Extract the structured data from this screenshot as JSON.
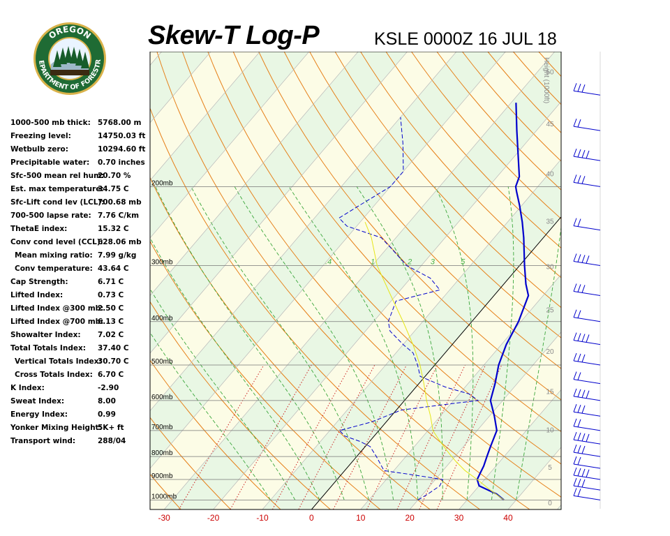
{
  "header": {
    "title": "Skew-T Log-P",
    "station": "KSLE 0000Z 16 JUL 18"
  },
  "logo": {
    "top_text": "OREGON",
    "bottom_text": "DEPARTMENT OF FORESTRY",
    "ring_color": "#1f6b34",
    "gold_color": "#d9b24a"
  },
  "indices": [
    {
      "label": "1000-500 mb thick:",
      "value": "5768.00 m"
    },
    {
      "label": "Freezing level:",
      "value": "14750.03 ft"
    },
    {
      "label": "Wetbulb zero:",
      "value": "10294.60 ft"
    },
    {
      "label": "Precipitable water:",
      "value": "0.70 inches"
    },
    {
      "label": "Sfc-500 mean rel hum:",
      "value": "20.70 %"
    },
    {
      "label": "Est. max temperature:",
      "value": "34.75 C"
    },
    {
      "label": "Sfc-Lift cond lev (LCL):",
      "value": "700.68 mb"
    },
    {
      "label": "700-500 lapse rate:",
      "value": "7.76 C/km"
    },
    {
      "label": "ThetaE index:",
      "value": "15.32 C"
    },
    {
      "label": "Conv cond level (CCL):",
      "value": "628.06 mb"
    },
    {
      "label": "Mean mixing ratio:",
      "value": "7.99 g/kg",
      "indent": true
    },
    {
      "label": "Conv temperature:",
      "value": "43.64 C",
      "indent": true
    },
    {
      "label": "Cap Strength:",
      "value": "6.71 C"
    },
    {
      "label": "Lifted Index:",
      "value": "0.73 C"
    },
    {
      "label": "Lifted Index @300 mb:",
      "value": "2.50 C"
    },
    {
      "label": "Lifted Index @700 mb:",
      "value": "6.13 C"
    },
    {
      "label": "Showalter Index:",
      "value": "7.02 C"
    },
    {
      "label": "Total Totals Index:",
      "value": "37.40 C"
    },
    {
      "label": "Vertical Totals Index:",
      "value": "30.70 C",
      "indent": true
    },
    {
      "label": "Cross Totals Index:",
      "value": "6.70 C",
      "indent": true
    },
    {
      "label": "K Index:",
      "value": "-2.90"
    },
    {
      "label": "Sweat Index:",
      "value": "8.00"
    },
    {
      "label": "Energy Index:",
      "value": "0.99"
    },
    {
      "label": "Yonker Mixing Height:",
      "value": "5K+ ft"
    },
    {
      "label": "Transport wind:",
      "value": "288/04"
    }
  ],
  "chart_data": {
    "type": "line",
    "title": "Skew-T Log-P",
    "xlabel": "",
    "ylabel": "",
    "x_ticks": [
      -30,
      -20,
      -10,
      0,
      10,
      20,
      30,
      40
    ],
    "x_tick_color": "#cc0000",
    "pressure_levels": [
      {
        "p": 200,
        "label": "200mb"
      },
      {
        "p": 300,
        "label": "300mb"
      },
      {
        "p": 400,
        "label": "400mb"
      },
      {
        "p": 500,
        "label": "500mb"
      },
      {
        "p": 600,
        "label": "600mb"
      },
      {
        "p": 700,
        "label": "700mb"
      },
      {
        "p": 800,
        "label": "800mb"
      },
      {
        "p": 900,
        "label": "900mb"
      },
      {
        "p": 1000,
        "label": "1000mb"
      }
    ],
    "height_axis_label": "Height (1000ft)",
    "height_ticks": [
      {
        "ft": 0,
        "label": "0"
      },
      {
        "ft": 5,
        "label": "5"
      },
      {
        "ft": 10,
        "label": "10"
      },
      {
        "ft": 15,
        "label": "15"
      },
      {
        "ft": 20,
        "label": "20"
      },
      {
        "ft": 25,
        "label": "25"
      },
      {
        "ft": 30,
        "label": "30"
      },
      {
        "ft": 35,
        "label": "35"
      },
      {
        "ft": 40,
        "label": "40"
      },
      {
        "ft": 45,
        "label": "45"
      },
      {
        "ft": 50,
        "label": "50"
      }
    ],
    "mixing_ratio_labels": [
      ".4",
      "1",
      "2",
      "3",
      "5"
    ],
    "series": [
      {
        "kind": "temperature",
        "color": "#0000cc",
        "points": [
          [
            1000,
            37.5
          ],
          [
            970,
            35.0
          ],
          [
            930,
            30.0
          ],
          [
            900,
            28.5
          ],
          [
            870,
            28.0
          ],
          [
            840,
            27.5
          ],
          [
            800,
            26.5
          ],
          [
            760,
            25.5
          ],
          [
            700,
            24.0
          ],
          [
            650,
            21.0
          ],
          [
            600,
            17.5
          ],
          [
            550,
            15.5
          ],
          [
            500,
            13.0
          ],
          [
            450,
            11.0
          ],
          [
            400,
            9.5
          ],
          [
            350,
            7.0
          ],
          [
            330,
            4.5
          ],
          [
            300,
            1.0
          ],
          [
            260,
            -4.0
          ],
          [
            240,
            -7.0
          ],
          [
            220,
            -10.5
          ],
          [
            205,
            -13.5
          ],
          [
            200,
            -14.5
          ],
          [
            190,
            -15.5
          ],
          [
            170,
            -19.5
          ],
          [
            150,
            -24.0
          ],
          [
            130,
            -29.0
          ]
        ]
      },
      {
        "kind": "dewpoint",
        "color": "#0000cc",
        "points": [
          [
            1000,
            20.0
          ],
          [
            970,
            21.0
          ],
          [
            930,
            22.0
          ],
          [
            900,
            21.5
          ],
          [
            880,
            15.0
          ],
          [
            860,
            8.0
          ],
          [
            800,
            4.0
          ],
          [
            760,
            1.0
          ],
          [
            740,
            -2.0
          ],
          [
            720,
            -6.0
          ],
          [
            700,
            -8.0
          ],
          [
            670,
            -3.0
          ],
          [
            630,
            1.0
          ],
          [
            610,
            10.0
          ],
          [
            600,
            15.0
          ],
          [
            580,
            12.0
          ],
          [
            560,
            6.0
          ],
          [
            530,
            -1.0
          ],
          [
            500,
            -3.5
          ],
          [
            470,
            -6.5
          ],
          [
            450,
            -10.0
          ],
          [
            420,
            -15.0
          ],
          [
            400,
            -17.0
          ],
          [
            360,
            -19.0
          ],
          [
            340,
            -12.0
          ],
          [
            320,
            -16.0
          ],
          [
            300,
            -23.0
          ],
          [
            275,
            -29.0
          ],
          [
            260,
            -33.0
          ],
          [
            245,
            -42.0
          ],
          [
            235,
            -45.0
          ],
          [
            220,
            -43.0
          ],
          [
            200,
            -40.0
          ],
          [
            185,
            -40.0
          ],
          [
            160,
            -45.0
          ],
          [
            140,
            -50.0
          ]
        ]
      },
      {
        "kind": "parcel",
        "color": "#e6e619",
        "points": [
          [
            1000,
            37.5
          ],
          [
            950,
            33.0
          ],
          [
            900,
            28.5
          ],
          [
            860,
            24.5
          ],
          [
            820,
            21.0
          ],
          [
            790,
            18.5
          ],
          [
            760,
            16.0
          ],
          [
            730,
            13.5
          ],
          [
            700,
            11.0
          ],
          [
            650,
            8.0
          ],
          [
            600,
            4.5
          ],
          [
            550,
            1.0
          ],
          [
            500,
            -3.0
          ],
          [
            450,
            -8.0
          ],
          [
            400,
            -14.0
          ],
          [
            350,
            -21.0
          ],
          [
            300,
            -29.0
          ],
          [
            260,
            -35.0
          ],
          [
            240,
            -39.0
          ]
        ]
      }
    ],
    "wind_levels_mb": [
      1000,
      950,
      900,
      850,
      800,
      750,
      700,
      650,
      600,
      550,
      500,
      450,
      400,
      350,
      300,
      250,
      200,
      175,
      150,
      125,
      100
    ]
  }
}
